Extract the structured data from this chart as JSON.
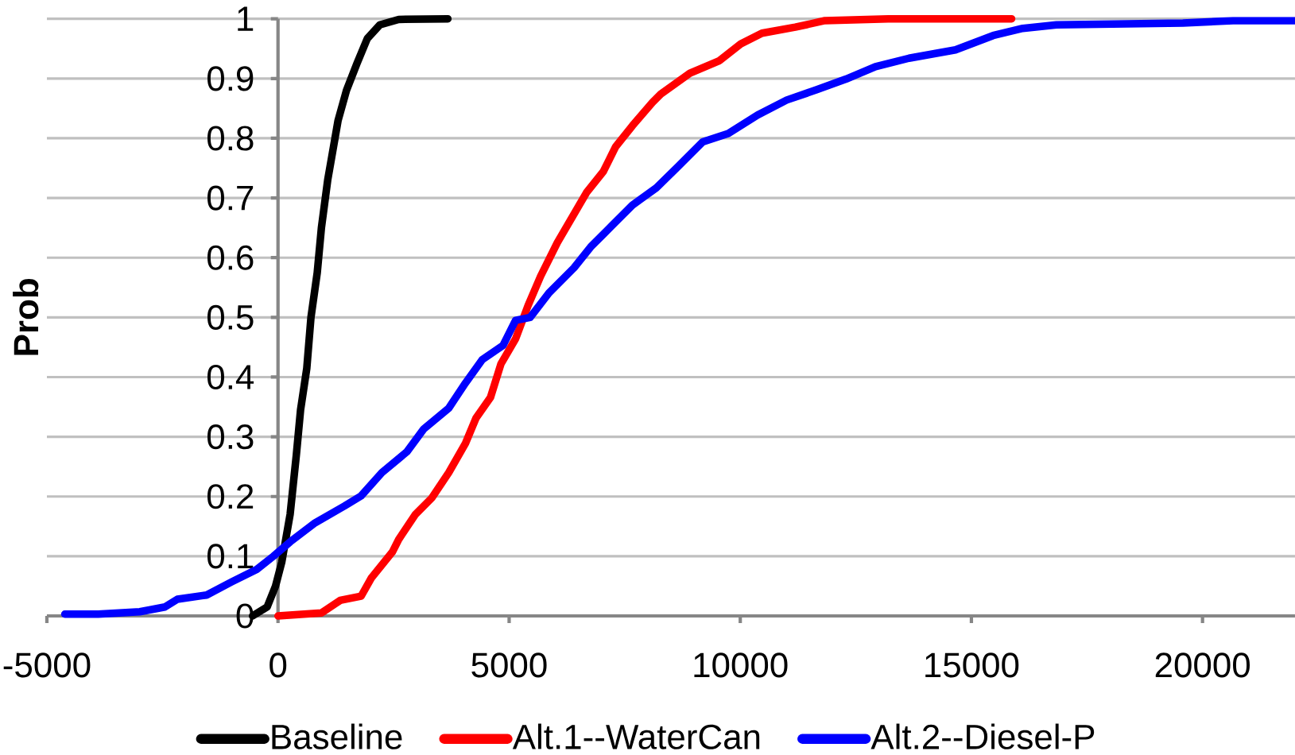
{
  "chart_data": {
    "type": "line",
    "ylabel": "Prob",
    "legend": "bottom",
    "grid": "y",
    "xlim": [
      -5000,
      22000
    ],
    "ylim": [
      0,
      1
    ],
    "xticks": [
      -5000,
      0,
      5000,
      10000,
      15000,
      20000
    ],
    "yticks": [
      0,
      0.1,
      0.2,
      0.3,
      0.4,
      0.5,
      0.6,
      0.7,
      0.8,
      0.9,
      1
    ],
    "series": [
      {
        "name": "Baseline",
        "color": "#000000",
        "x": [
          -551,
          -235,
          -54,
          81,
          262,
          397,
          488,
          623,
          713,
          849,
          939,
          1075,
          1165,
          1300,
          1481,
          1707,
          1932,
          2203,
          2610,
          3675
        ],
        "values": [
          0,
          0.015,
          0.05,
          0.09,
          0.17,
          0.27,
          0.345,
          0.415,
          0.5,
          0.575,
          0.65,
          0.73,
          0.77,
          0.83,
          0.88,
          0.925,
          0.967,
          0.99,
          0.999,
          1
        ]
      },
      {
        "name": "Alt.1--WaterCan",
        "color": "#ff0000",
        "x": [
          0,
          939,
          1345,
          1797,
          2023,
          2474,
          2610,
          2971,
          3332,
          3694,
          4055,
          4281,
          4597,
          4823,
          5139,
          5410,
          5681,
          6042,
          6358,
          6674,
          7035,
          7306,
          7667,
          8100,
          8280,
          8910,
          9550,
          10010,
          10470,
          11190,
          11830,
          13200,
          15870
        ],
        "values": [
          0,
          0.005,
          0.026,
          0.033,
          0.064,
          0.107,
          0.128,
          0.17,
          0.198,
          0.24,
          0.289,
          0.331,
          0.366,
          0.422,
          0.464,
          0.52,
          0.569,
          0.625,
          0.667,
          0.709,
          0.744,
          0.786,
          0.821,
          0.86,
          0.874,
          0.909,
          0.93,
          0.958,
          0.976,
          0.986,
          0.997,
          1,
          1
        ]
      },
      {
        "name": "Alt.2--Diesel-P",
        "color": "#0000ff",
        "x": [
          -4612,
          -3890,
          -2990,
          -2447,
          -2176,
          -1544,
          -1002,
          -461,
          -99,
          262,
          804,
          1436,
          1797,
          2248,
          2790,
          3151,
          3694,
          4055,
          4416,
          4868,
          5139,
          5455,
          5861,
          6403,
          6764,
          7215,
          7667,
          8184,
          8644,
          9190,
          9740,
          10375,
          11005,
          11645,
          12285,
          12925,
          13650,
          14655,
          15470,
          16110,
          16840,
          19575,
          20660,
          22000
        ],
        "values": [
          0.003,
          0.003,
          0.007,
          0.015,
          0.028,
          0.035,
          0.057,
          0.078,
          0.1,
          0.124,
          0.156,
          0.184,
          0.201,
          0.24,
          0.275,
          0.313,
          0.348,
          0.39,
          0.429,
          0.453,
          0.495,
          0.5,
          0.541,
          0.583,
          0.618,
          0.653,
          0.688,
          0.717,
          0.752,
          0.794,
          0.808,
          0.839,
          0.864,
          0.881,
          0.899,
          0.92,
          0.934,
          0.948,
          0.972,
          0.984,
          0.99,
          0.993,
          0.997,
          0.997
        ]
      }
    ]
  }
}
